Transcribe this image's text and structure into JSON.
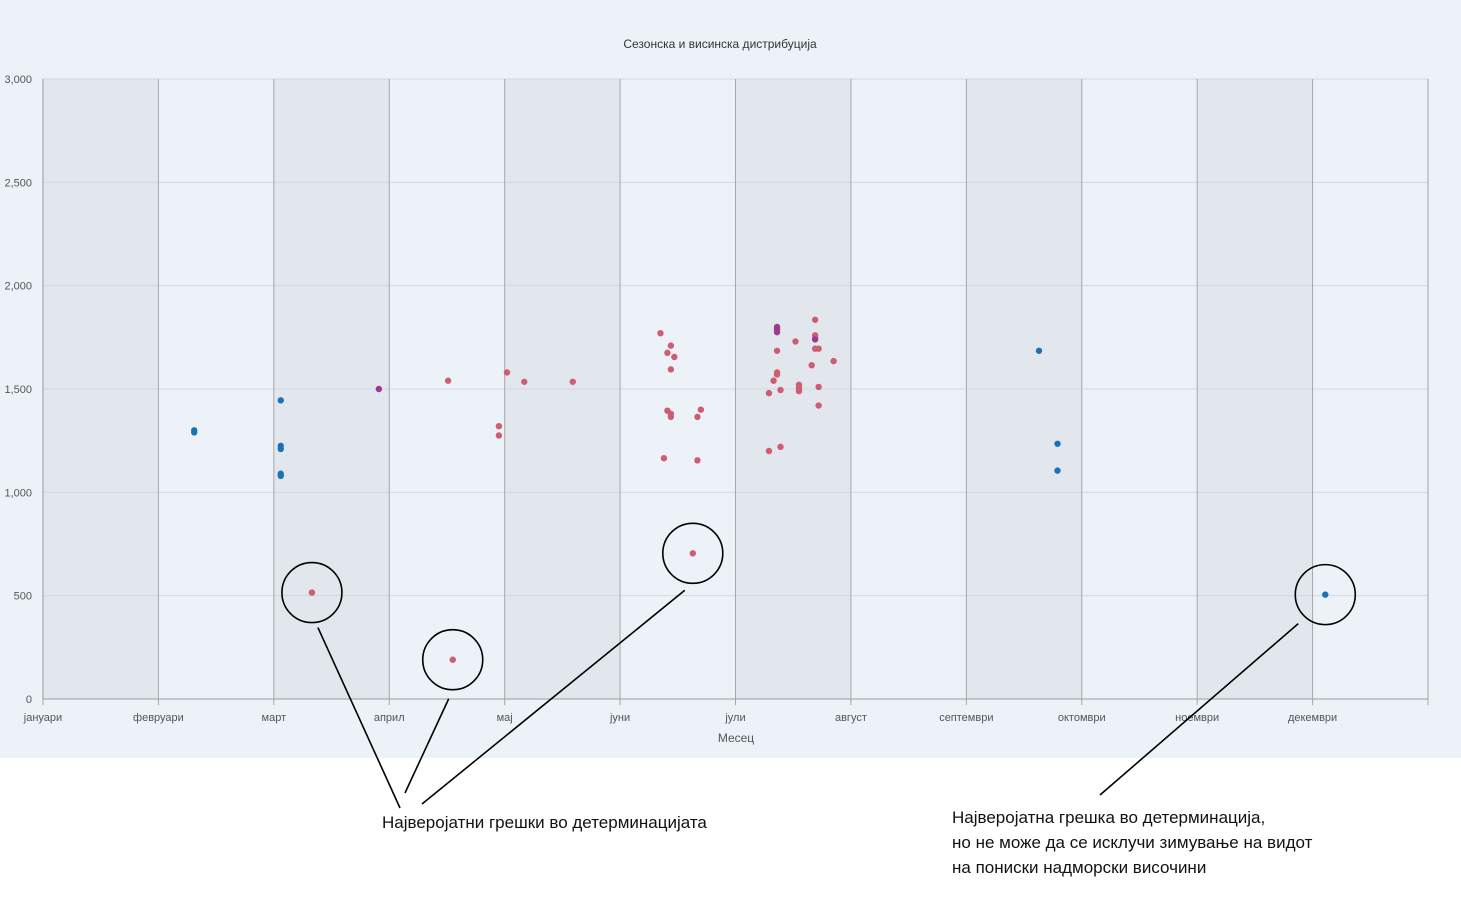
{
  "chart_data": {
    "type": "scatter",
    "title": "Сезонска и висинска дистрибуција",
    "xlabel": "Месец",
    "ylabel": "",
    "x_categories": [
      "јануари",
      "февруари",
      "март",
      "април",
      "мај",
      "јуни",
      "јули",
      "август",
      "септември",
      "октомври",
      "ноември",
      "декември"
    ],
    "xlim": [
      1,
      13
    ],
    "ylim": [
      0,
      3000
    ],
    "y_ticks": [
      0,
      500,
      1000,
      1500,
      2000,
      2500,
      3000
    ],
    "y_tick_labels": [
      "0",
      "500",
      "1,000",
      "1,500",
      "2,000",
      "2,500",
      "3,000"
    ],
    "grid": true,
    "alternating_month_bands": true,
    "colors": {
      "blue": "#1a73b5",
      "red": "#cf5d72",
      "purple": "#9b3b8f",
      "band": "#e2e7ee",
      "plot_bg": "#edf2f8"
    },
    "series": [
      {
        "color": "blue",
        "points": [
          [
            2.31,
            1300
          ],
          [
            2.31,
            1290
          ],
          [
            3.06,
            1445
          ],
          [
            3.06,
            1225
          ],
          [
            3.06,
            1210
          ],
          [
            3.06,
            1090
          ],
          [
            3.06,
            1080
          ],
          [
            9.63,
            1685
          ],
          [
            9.79,
            1235
          ],
          [
            9.79,
            1105
          ],
          [
            12.11,
            505
          ]
        ]
      },
      {
        "color": "red",
        "points": [
          [
            3.33,
            515
          ],
          [
            4.51,
            1540
          ],
          [
            4.55,
            190
          ],
          [
            4.95,
            1320
          ],
          [
            4.95,
            1275
          ],
          [
            5.02,
            1580
          ],
          [
            5.17,
            1535
          ],
          [
            5.59,
            1535
          ],
          [
            6.35,
            1770
          ],
          [
            6.38,
            1165
          ],
          [
            6.41,
            1675
          ],
          [
            6.41,
            1395
          ],
          [
            6.44,
            1710
          ],
          [
            6.44,
            1595
          ],
          [
            6.44,
            1380
          ],
          [
            6.44,
            1365
          ],
          [
            6.47,
            1655
          ],
          [
            6.63,
            705
          ],
          [
            6.67,
            1365
          ],
          [
            6.67,
            1155
          ],
          [
            6.7,
            1400
          ],
          [
            7.29,
            1480
          ],
          [
            7.29,
            1200
          ],
          [
            7.33,
            1540
          ],
          [
            7.36,
            1685
          ],
          [
            7.36,
            1580
          ],
          [
            7.36,
            1570
          ],
          [
            7.39,
            1495
          ],
          [
            7.39,
            1220
          ],
          [
            7.52,
            1730
          ],
          [
            7.55,
            1520
          ],
          [
            7.55,
            1505
          ],
          [
            7.55,
            1490
          ],
          [
            7.66,
            1615
          ],
          [
            7.69,
            1835
          ],
          [
            7.69,
            1760
          ],
          [
            7.69,
            1745
          ],
          [
            7.69,
            1695
          ],
          [
            7.72,
            1695
          ],
          [
            7.72,
            1510
          ],
          [
            7.72,
            1420
          ],
          [
            7.85,
            1635
          ]
        ]
      },
      {
        "color": "purple",
        "points": [
          [
            3.91,
            1500
          ],
          [
            7.36,
            1800
          ],
          [
            7.36,
            1790
          ],
          [
            7.36,
            1775
          ],
          [
            7.69,
            1740
          ]
        ]
      }
    ],
    "annotations": {
      "circled_points": [
        [
          3.33,
          515
        ],
        [
          4.55,
          190
        ],
        [
          6.63,
          705
        ],
        [
          12.11,
          505
        ]
      ],
      "note_left": "Најверојатни грешки во детерминацијата",
      "note_right_lines": [
        "Најверојатна грешка во детерминација,",
        "но не може да се исклучи зимување на видот",
        "на пониски надморски височини"
      ]
    }
  }
}
